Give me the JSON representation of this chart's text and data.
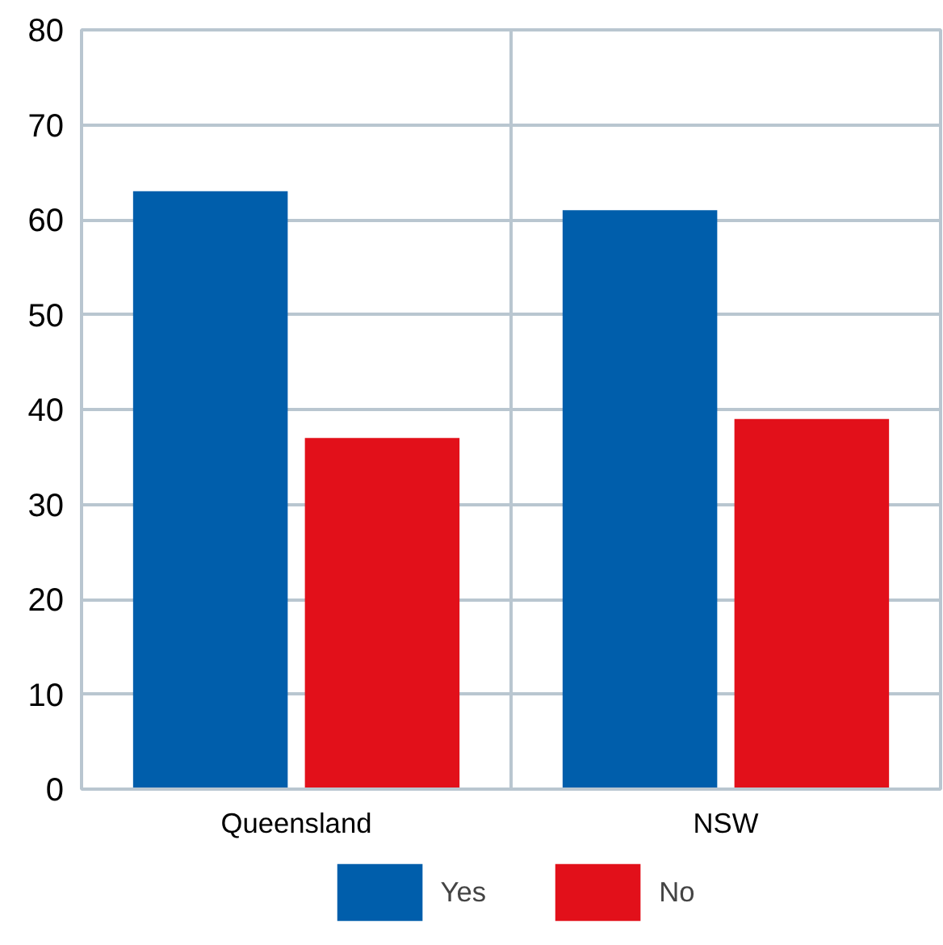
{
  "chart_data": {
    "type": "bar",
    "categories": [
      "Queensland",
      "NSW"
    ],
    "series": [
      {
        "name": "Yes",
        "color": "#005eab",
        "values": [
          63,
          61
        ]
      },
      {
        "name": "No",
        "color": "#e2101a",
        "values": [
          37,
          39
        ]
      }
    ],
    "ylim": [
      0,
      80
    ],
    "yticks": [
      0,
      10,
      20,
      30,
      40,
      50,
      60,
      70,
      80
    ],
    "grid": true,
    "legend": "bottom"
  }
}
